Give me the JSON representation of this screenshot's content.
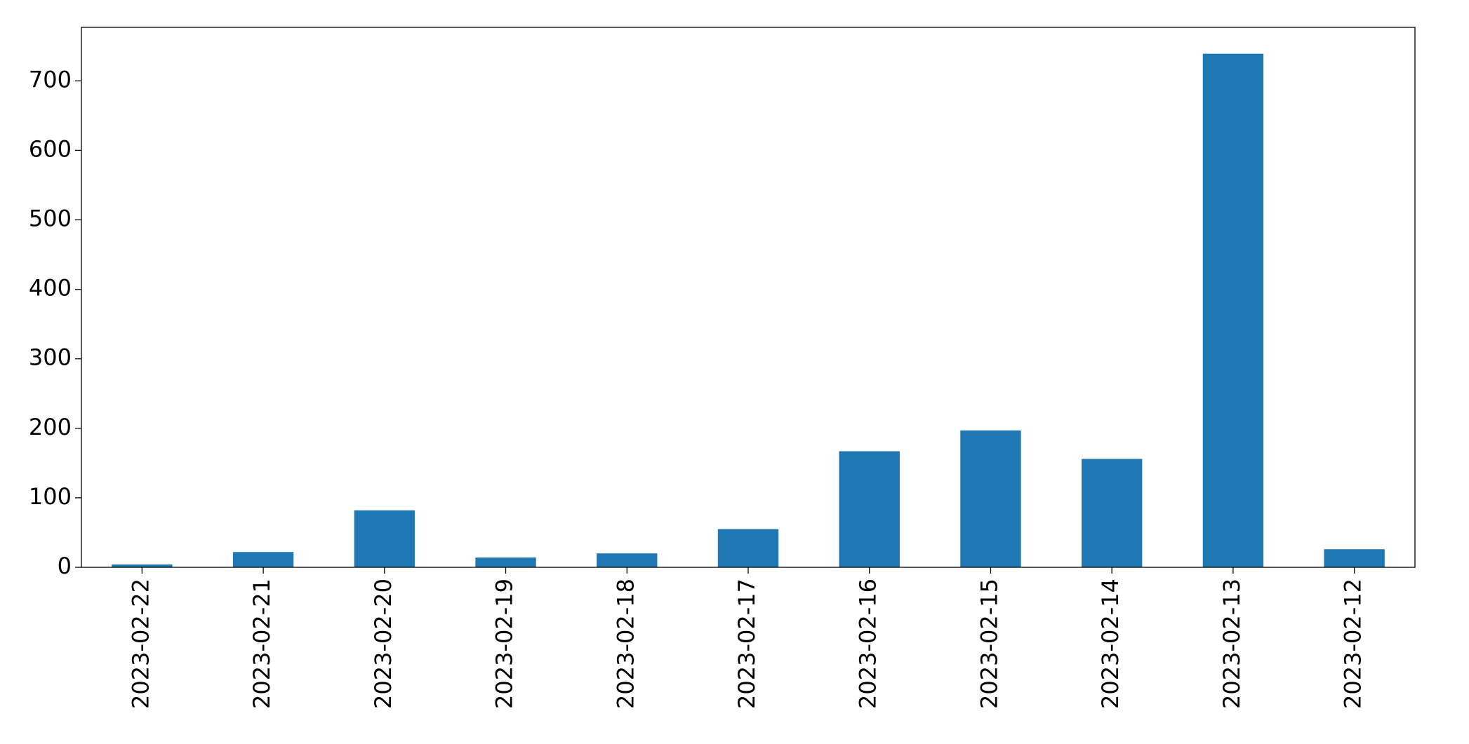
{
  "chart_data": {
    "type": "bar",
    "categories": [
      "2023-02-22",
      "2023-02-21",
      "2023-02-20",
      "2023-02-19",
      "2023-02-18",
      "2023-02-17",
      "2023-02-16",
      "2023-02-15",
      "2023-02-14",
      "2023-02-13",
      "2023-02-12"
    ],
    "values": [
      4,
      22,
      82,
      14,
      20,
      55,
      167,
      197,
      156,
      739,
      26
    ],
    "color": "#1f77b4",
    "ylim": [
      0,
      777
    ],
    "yticks": [
      0,
      100,
      200,
      300,
      400,
      500,
      600,
      700
    ],
    "grid": false
  }
}
